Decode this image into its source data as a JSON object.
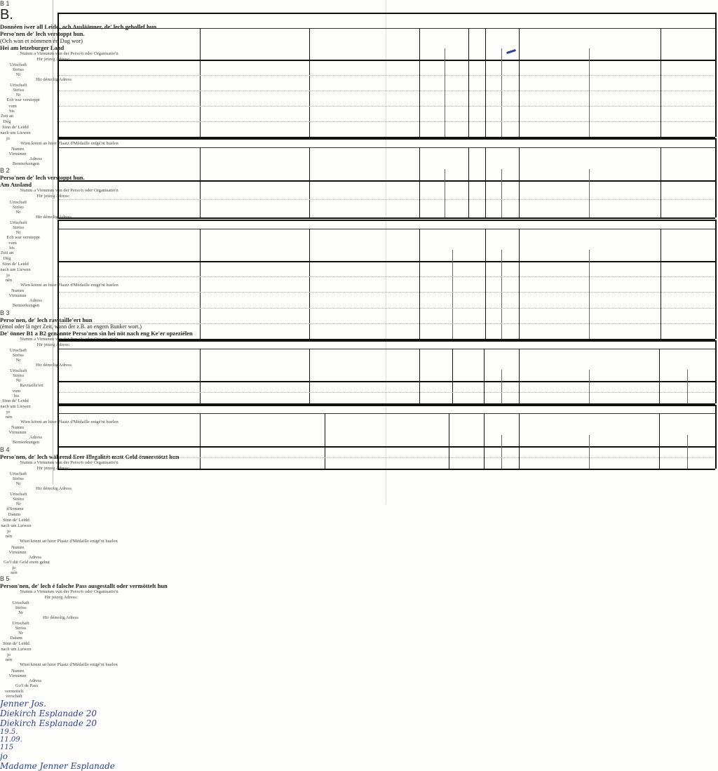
{
  "sections": [
    {
      "code": "B 1",
      "letter": "B.",
      "title": [
        "Donnéen iwer all Leidd, och Ausläänner, de' lech gehollef hun",
        "Perso'nen de' lech verstoppt hun."
      ],
      "title_note": "(Och wan et nömmen én Dag wor)",
      "title_right": "Hei am letzeburger Land",
      "columns": [
        {
          "label": "Numm a Virnumm vun der Perso'n oder Organisatio'n",
          "sub": []
        },
        {
          "label": "Hir jetzeg Adress:",
          "sub": [
            "Urtschaft",
            "Ströss",
            "Nr"
          ]
        },
        {
          "label": "Hir démolig Adress",
          "sub": [
            "Urtschaft",
            "Ströss",
            "Nr"
          ]
        },
        {
          "label": "Ech war verstoppt",
          "sub": [
            "vum",
            "bis"
          ]
        },
        {
          "label": "Zeit an Dég",
          "sub": []
        },
        {
          "label": "Sinn de' Leidd nach um Liewen",
          "sub": [
            "jo",
            ""
          ]
        },
        {
          "label": "Wien könnt an hirer Plaatz d'Médaille entgé'nt huelen",
          "sub": [
            "Numm",
            "Virnumm",
            "Adress"
          ]
        },
        {
          "label": "Bemierkungen",
          "sub": []
        }
      ],
      "entries": [
        {
          "name": "Jenner Jos.",
          "jetzeg": "Diekirch  Esplanade 20",
          "demolig": "Diekirch  Esplanade 20",
          "vum": "19.5.",
          "bis": "11.09.",
          "zeit": "115",
          "jo": "jo",
          "medaille": "Madame Jenner  Esplanade"
        }
      ]
    },
    {
      "code": "B 2",
      "title": [
        "Perso'nen de' lech verstoppt hun."
      ],
      "title_right": "Am Ausland",
      "columns": [
        {
          "label": "Numm a Virnumm vun der Perso'n oder Organisatio'n",
          "sub": []
        },
        {
          "label": "Hir jetzeg Adress:",
          "sub": [
            "Urtschaft",
            "Ströss",
            "Nr"
          ]
        },
        {
          "label": "Hir démolig Adress",
          "sub": [
            "Urtschaft",
            "Ströss",
            "Nr"
          ]
        },
        {
          "label": "Ech war verstoppt",
          "sub": [
            "vum",
            "bis"
          ]
        },
        {
          "label": "Zeit an Dég",
          "sub": []
        },
        {
          "label": "Sinn de' Leidd nach um Liewen",
          "sub": [
            "jo",
            "nén"
          ]
        },
        {
          "label": "Wien könnt an hirer Plaatz d'Médaille entgé'nt huelen",
          "sub": [
            "Numm",
            "Virnumm",
            "Adress"
          ]
        },
        {
          "label": "Bemierkungen",
          "sub": []
        }
      ]
    },
    {
      "code": "B 3",
      "title": [
        "Perso'nen, de' lech ravitaille'ert hun"
      ],
      "title_note": "(émol oder lä nger Zeit, wann der z.B. an engem Bunker wort.)",
      "title_right": "De' önner B1 a B2 genannte Perso'nen sin hei nöt nach eng Ke'er opzeziélen",
      "columns": [
        {
          "label": "Numm a Virnumm vun der Perso'n oder Organisatio'n",
          "sub": []
        },
        {
          "label": "Hir jetzeg Adress:",
          "sub": [
            "Urtschaft",
            "Ströss",
            "Nr"
          ]
        },
        {
          "label": "Hir démolig Adress",
          "sub": [
            "Urtschaft",
            "Ströss",
            "Nr"
          ]
        },
        {
          "label": "Ravitaille'ert",
          "sub": [
            "vum",
            "bis"
          ]
        },
        {
          "label": "Sinn de' Leidd nach um Liewen",
          "sub": [
            "jo",
            "nén"
          ]
        },
        {
          "label": "Wien könnt an hirer Plaatz d'Médaille entgé'nt huelen",
          "sub": [
            "Numm",
            "Virnumm",
            "Adress"
          ]
        },
        {
          "label": "Bemierkungen",
          "sub": []
        }
      ]
    },
    {
      "code": "B 4",
      "title": [
        "Perso'nen, de' lech während Erer Illegalitét matt Geld önnerstötzt hun"
      ],
      "columns": [
        {
          "label": "Numm a Virnumm vun der Perso'n oder Organisatio'n",
          "sub": []
        },
        {
          "label": "Hir jetzeg Adress:",
          "sub": [
            "Urtschaft",
            "Ströss",
            "Nr"
          ]
        },
        {
          "label": "Hir démolig Adress",
          "sub": [
            "Urtschaft",
            "Ströss",
            "Nr"
          ]
        },
        {
          "label": "d'Somme",
          "sub": []
        },
        {
          "label": "Datum",
          "sub": []
        },
        {
          "label": "Sinn de' Leidd nach um Liewen",
          "sub": [
            "jo",
            "nén"
          ]
        },
        {
          "label": "Wien könnt an hirer Plaatz d'Médaille entgé'nt huelen",
          "sub": [
            "Numm",
            "Virnumm",
            "Adress"
          ]
        },
        {
          "label": "Go'f dät Geld erem gebut",
          "sub": [
            "jo",
            "nén"
          ]
        }
      ]
    },
    {
      "code": "B 5",
      "title": [
        "Person'nen, de' lech é falsche Pass ausgestallt oder  vermöttelt hun"
      ],
      "columns": [
        {
          "label": "Numm a Virnumm vun der Perso'n oder Organisatio'n",
          "sub": []
        },
        {
          "label": "Hir jetzeg Adress:",
          "sub": [
            "Urtschaft",
            "Ströss",
            "Nr"
          ]
        },
        {
          "label": "Hir démolig Adress",
          "sub": [
            "Urtschaft",
            "Ströss",
            "Nr"
          ]
        },
        {
          "label": "Datum",
          "sub": []
        },
        {
          "label": "Sinn de' Leidd nach um Liewen",
          "sub": [
            "jo",
            "nén"
          ]
        },
        {
          "label": "Wien könnt an hirer Plaatz d'Médaille entgé'nt huelen",
          "sub": [
            "Numm",
            "Virnumm",
            "Adress"
          ]
        },
        {
          "label": "Go'f de Pass",
          "sub": [
            "vermettelt",
            "verschäft"
          ]
        }
      ]
    }
  ],
  "colors": {
    "ink": "#2b3f9e",
    "lines": "#333333"
  }
}
